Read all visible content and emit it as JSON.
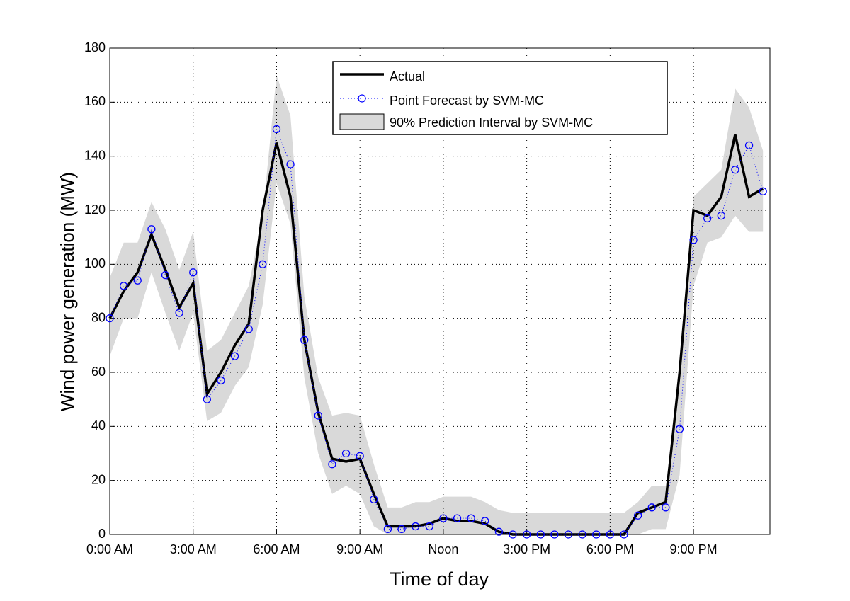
{
  "chart_data": {
    "type": "line",
    "xlabel": "Time of day",
    "ylabel": "Wind power generation (MW)",
    "x": [
      0,
      0.5,
      1,
      1.5,
      2,
      2.5,
      3,
      3.5,
      4,
      4.5,
      5,
      5.5,
      6,
      6.5,
      7,
      7.5,
      8,
      8.5,
      9,
      9.5,
      10,
      10.5,
      11,
      11.5,
      12,
      12.5,
      13,
      13.5,
      14,
      14.5,
      15,
      15.5,
      16,
      16.5,
      17,
      17.5,
      18,
      18.5,
      19,
      19.5,
      20,
      20.5,
      21,
      21.5,
      22,
      22.5,
      23,
      23.5
    ],
    "series": [
      {
        "name": "Actual",
        "color": "#000000",
        "values": [
          80,
          90,
          97,
          111,
          98,
          84,
          93,
          52,
          60,
          70,
          78,
          120,
          145,
          125,
          72,
          45,
          28,
          27,
          28,
          15,
          3,
          3,
          3,
          4,
          6,
          5,
          5,
          4,
          1,
          0,
          0,
          0,
          0,
          0,
          0,
          0,
          0,
          0,
          8,
          10,
          12,
          60,
          120,
          118,
          125,
          148,
          125,
          128
        ]
      },
      {
        "name": "Point Forecast by SVM-MC",
        "color": "#0000ff",
        "values": [
          80,
          92,
          94,
          113,
          96,
          82,
          97,
          50,
          57,
          66,
          76,
          100,
          150,
          137,
          72,
          44,
          26,
          30,
          29,
          13,
          2,
          2,
          3,
          3,
          6,
          6,
          6,
          5,
          1,
          0,
          0,
          0,
          0,
          0,
          0,
          0,
          0,
          0,
          7,
          10,
          10,
          39,
          109,
          117,
          118,
          135,
          144,
          127
        ]
      }
    ],
    "band": {
      "name": "90% Prediction Interval by SVM-MC",
      "color": "#d9d9d9",
      "lower": [
        66,
        80,
        80,
        97,
        82,
        68,
        82,
        42,
        45,
        55,
        62,
        85,
        130,
        115,
        58,
        30,
        15,
        18,
        15,
        3,
        0,
        0,
        0,
        0,
        0,
        0,
        0,
        0,
        0,
        0,
        0,
        0,
        0,
        0,
        0,
        0,
        0,
        0,
        0,
        2,
        2,
        22,
        92,
        108,
        110,
        118,
        112,
        112
      ],
      "upper": [
        95,
        108,
        108,
        123,
        113,
        98,
        112,
        68,
        72,
        82,
        92,
        118,
        170,
        155,
        88,
        58,
        44,
        45,
        44,
        26,
        10,
        10,
        12,
        12,
        14,
        14,
        14,
        12,
        9,
        8,
        8,
        8,
        8,
        8,
        8,
        8,
        8,
        8,
        12,
        18,
        18,
        55,
        125,
        130,
        135,
        165,
        158,
        142
      ]
    },
    "xlim": [
      0,
      23.75
    ],
    "xticks": [
      {
        "value": 0,
        "label": "0:00 AM"
      },
      {
        "value": 3,
        "label": "3:00 AM"
      },
      {
        "value": 6,
        "label": "6:00 AM"
      },
      {
        "value": 9,
        "label": "9:00 AM"
      },
      {
        "value": 12,
        "label": "Noon"
      },
      {
        "value": 15,
        "label": "3:00 PM"
      },
      {
        "value": 18,
        "label": "6:00 PM"
      },
      {
        "value": 21,
        "label": "9:00 PM"
      }
    ],
    "ylim": [
      0,
      180
    ],
    "yticks": [
      0,
      20,
      40,
      60,
      80,
      100,
      120,
      140,
      160,
      180
    ],
    "grid": true,
    "legend": "top"
  }
}
